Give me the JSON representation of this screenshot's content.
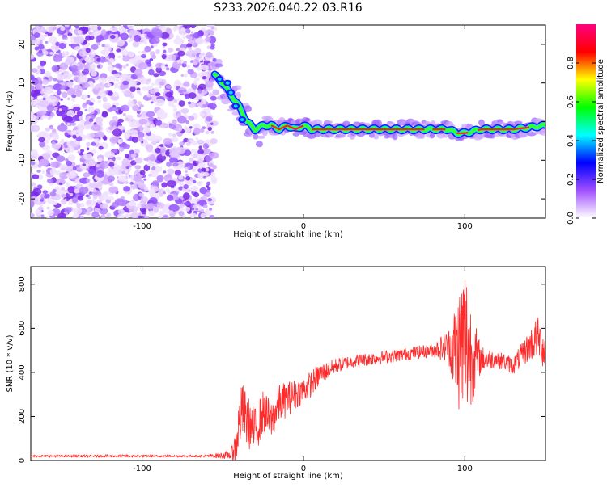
{
  "chart_data": [
    {
      "type": "heatmap",
      "title": "S233.2026.040.22.03.R16",
      "xlabel": "Height of straight line (km)",
      "ylabel": "Frequency (Hz)",
      "xlim": [
        -169,
        150
      ],
      "ylim": [
        -25,
        25
      ],
      "x_ticks": [
        -100,
        0,
        100
      ],
      "y_ticks": [
        -20,
        -10,
        0,
        10,
        20
      ],
      "x_tick_labels": [
        "-100",
        "0",
        "100"
      ],
      "y_tick_labels": [
        "-20",
        "-10",
        "0",
        "10",
        "20"
      ],
      "noise_region_x": [
        -169,
        -55
      ],
      "ridge": {
        "x": [
          -55,
          -50,
          -45,
          -40,
          -35,
          -30,
          -25,
          -20,
          -15,
          -10,
          -5,
          0,
          5,
          10,
          20,
          40,
          60,
          80,
          90,
          95,
          100,
          110,
          130,
          150
        ],
        "y": [
          12,
          10,
          7,
          4,
          0,
          -2,
          -1,
          -1,
          -2,
          -1,
          -2,
          -1,
          -2,
          -2,
          -2,
          -2,
          -2,
          -2,
          -2,
          -3,
          -3,
          -2,
          -2,
          -1
        ]
      },
      "colorbar": {
        "label": "Normalized spectral amplitude",
        "range": [
          0,
          1
        ],
        "ticks": [
          0.0,
          0.2,
          0.4,
          0.6,
          0.8
        ],
        "tick_labels": [
          "0.0",
          "0.2",
          "0.4",
          "0.6",
          "0.8"
        ],
        "colors": [
          "#ffffff",
          "#a050ff",
          "#0000ff",
          "#00ffff",
          "#00ff00",
          "#ffff00",
          "#ff0000",
          "#ff0080"
        ]
      }
    },
    {
      "type": "line",
      "title": "",
      "xlabel": "Height of straight line (km)",
      "ylabel": "SNR (10 * v/v)",
      "xlim": [
        -169,
        150
      ],
      "ylim": [
        0,
        880
      ],
      "x_ticks": [
        -100,
        0,
        100
      ],
      "y_ticks": [
        0,
        200,
        400,
        600,
        800
      ],
      "x_tick_labels": [
        "-100",
        "0",
        "100"
      ],
      "y_tick_labels": [
        "0",
        "200",
        "400",
        "600",
        "800"
      ],
      "line_color": "#ff2a2a",
      "series": [
        {
          "name": "SNR",
          "x": [
            -169,
            -150,
            -100,
            -60,
            -45,
            -42,
            -40,
            -38,
            -35,
            -30,
            -25,
            -20,
            -15,
            -10,
            -5,
            0,
            5,
            10,
            15,
            20,
            30,
            40,
            50,
            60,
            70,
            80,
            90,
            95,
            100,
            105,
            110,
            120,
            130,
            140,
            145,
            150
          ],
          "values": [
            20,
            20,
            20,
            20,
            25,
            60,
            160,
            230,
            180,
            130,
            220,
            180,
            260,
            280,
            300,
            320,
            350,
            390,
            410,
            430,
            450,
            460,
            470,
            480,
            490,
            500,
            520,
            500,
            540,
            470,
            460,
            460,
            430,
            520,
            560,
            490
          ],
          "jitter": [
            5,
            5,
            5,
            5,
            20,
            80,
            120,
            130,
            120,
            110,
            100,
            90,
            90,
            80,
            70,
            60,
            60,
            50,
            40,
            35,
            30,
            30,
            30,
            30,
            30,
            30,
            80,
            250,
            400,
            200,
            60,
            40,
            40,
            70,
            100,
            90
          ]
        }
      ]
    }
  ]
}
